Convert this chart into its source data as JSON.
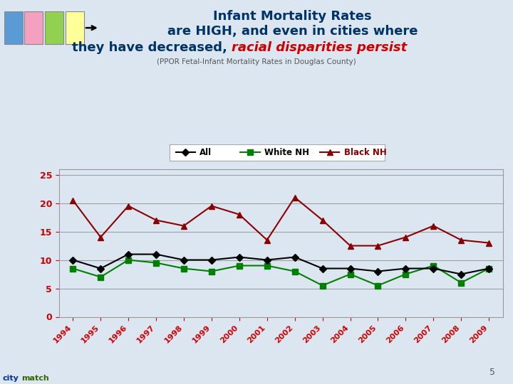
{
  "years": [
    1994,
    1995,
    1996,
    1997,
    1998,
    1999,
    2000,
    2001,
    2002,
    2003,
    2004,
    2005,
    2006,
    2007,
    2008,
    2009
  ],
  "all_vals": [
    10.0,
    8.5,
    11.0,
    11.0,
    10.0,
    10.0,
    10.5,
    10.0,
    10.5,
    8.5,
    8.5,
    8.0,
    8.5,
    8.5,
    7.5,
    8.5
  ],
  "white_nh": [
    8.5,
    7.0,
    10.0,
    9.5,
    8.5,
    8.0,
    9.0,
    9.0,
    8.0,
    5.5,
    7.5,
    5.5,
    7.5,
    9.0,
    6.0,
    8.5
  ],
  "black_nh": [
    20.5,
    14.0,
    19.5,
    17.0,
    16.0,
    19.5,
    18.0,
    13.5,
    21.0,
    17.0,
    12.5,
    12.5,
    14.0,
    16.0,
    13.5,
    13.0
  ],
  "bg_color": "#dce6f1",
  "plot_bg": "#dce6f1",
  "title_line1": "Infant Mortality Rates",
  "title_line2": "are HIGH, and even in cities where",
  "title_line3_plain": "they have decreased, ",
  "title_line3_italic": "racial disparities persist",
  "subtitle": "(PPOR Fetal-Infant Mortality Rates in Douglas County)",
  "title_color": "#003366",
  "italic_color": "#cc0000",
  "subtitle_color": "#555555",
  "all_color": "#000000",
  "white_color": "#008000",
  "black_color": "#8b0000",
  "yticks": [
    0,
    5,
    10,
    15,
    20,
    25
  ],
  "ylim": [
    0,
    26
  ],
  "xlabel_color": "#cc0000",
  "page_num": "5",
  "box_colors": [
    "#5b9bd5",
    "#f4a0c0",
    "#92d050",
    "#ffff99"
  ]
}
